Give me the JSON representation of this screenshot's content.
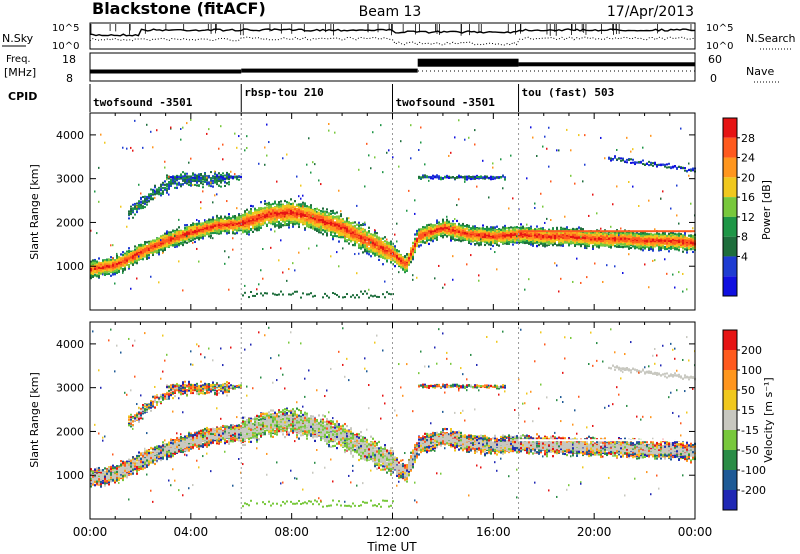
{
  "header": {
    "station": "Blackstone (fitACF)",
    "beam": "Beam 13",
    "date": "17/Apr/2013"
  },
  "top_panels": {
    "nsky_label": "N.Sky",
    "nsky_ticks": [
      "10^5",
      "10^0"
    ],
    "nsearch_label": "N.Search",
    "nsearch_ticks": [
      "10^5",
      "10^0"
    ],
    "freq_label_1": "Freq.",
    "freq_label_2": "[MHz]",
    "freq_ticks": [
      "18",
      "8"
    ],
    "nave_label": "Nave",
    "nave_ticks": [
      "60",
      "0"
    ],
    "cpid_label": "CPID",
    "cpid_segments": [
      {
        "label": "twofsound -3501",
        "start": 0,
        "end": 6
      },
      {
        "label": "rbsp-tou 210",
        "start": 6,
        "end": 12
      },
      {
        "label": "twofsound -3501",
        "start": 12,
        "end": 17
      },
      {
        "label": "tou (fast) 503",
        "start": 17,
        "end": 24
      }
    ],
    "freq_steps": [
      {
        "start": 0,
        "end": 6,
        "value": 10.5
      },
      {
        "start": 6,
        "end": 13,
        "value": 11.0
      },
      {
        "start": 13,
        "end": 17,
        "value": 16.5
      },
      {
        "start": 17,
        "end": 24,
        "value": 14.5
      }
    ]
  },
  "chart_data": [
    {
      "type": "heatmap",
      "name": "power",
      "ylabel": "Slant Range [km]",
      "ylim": [
        0,
        4500
      ],
      "yticks": [
        "1000",
        "2000",
        "3000",
        "4000"
      ],
      "xlim": [
        0,
        24
      ],
      "colorbar_label": "Power [dB]",
      "colorbar_ticks": [
        "4",
        "8",
        "12",
        "16",
        "20",
        "24",
        "28"
      ],
      "colorbar_colors": [
        "#1010e0",
        "#1e3cd2",
        "#1e6e3c",
        "#1e9646",
        "#78c83c",
        "#f0c81e",
        "#ff961e",
        "#ff5a1e",
        "#e61414"
      ]
    },
    {
      "type": "heatmap",
      "name": "velocity",
      "ylabel": "Slant Range [km]",
      "ylim": [
        0,
        4500
      ],
      "yticks": [
        "1000",
        "2000",
        "3000",
        "4000"
      ],
      "xlim": [
        0,
        24
      ],
      "xlabel": "Time UT",
      "xticks": [
        "00:00",
        "04:00",
        "08:00",
        "12:00",
        "16:00",
        "20:00",
        "00:00"
      ],
      "colorbar_label": "Velocity [m s⁻¹]",
      "colorbar_ticks": [
        "200",
        "100",
        "50",
        "15",
        "-15",
        "-50",
        "-100",
        "-200"
      ],
      "colorbar_colors": [
        "#2028b4",
        "#1e5a96",
        "#2a8c46",
        "#78c83c",
        "#c8c8c0",
        "#f0c81e",
        "#ff961e",
        "#ff5a1e",
        "#e61414"
      ]
    }
  ],
  "features": {
    "main_band": [
      [
        0,
        950
      ],
      [
        1,
        1050
      ],
      [
        2,
        1350
      ],
      [
        3,
        1600
      ],
      [
        4,
        1800
      ],
      [
        5,
        1950
      ],
      [
        6,
        2000
      ],
      [
        7,
        2200
      ],
      [
        8,
        2250
      ],
      [
        9,
        2100
      ],
      [
        10,
        1900
      ],
      [
        11,
        1600
      ],
      [
        12,
        1300
      ],
      [
        12.5,
        1050
      ],
      [
        13,
        1700
      ],
      [
        14,
        1900
      ],
      [
        15,
        1750
      ],
      [
        16,
        1700
      ],
      [
        17,
        1750
      ],
      [
        18,
        1700
      ],
      [
        19,
        1700
      ],
      [
        20,
        1650
      ],
      [
        21,
        1650
      ],
      [
        22,
        1600
      ],
      [
        23,
        1600
      ],
      [
        24,
        1550
      ]
    ],
    "upper_band": [
      [
        1.5,
        2200
      ],
      [
        2.5,
        2700
      ],
      [
        3.5,
        3000
      ],
      [
        4.5,
        3000
      ],
      [
        5.5,
        3000
      ]
    ],
    "echo_3000": [
      [
        13,
        3050
      ],
      [
        16.5,
        3050
      ]
    ],
    "echo_upper_right": [
      [
        20.5,
        3500
      ],
      [
        24,
        3200
      ]
    ]
  }
}
